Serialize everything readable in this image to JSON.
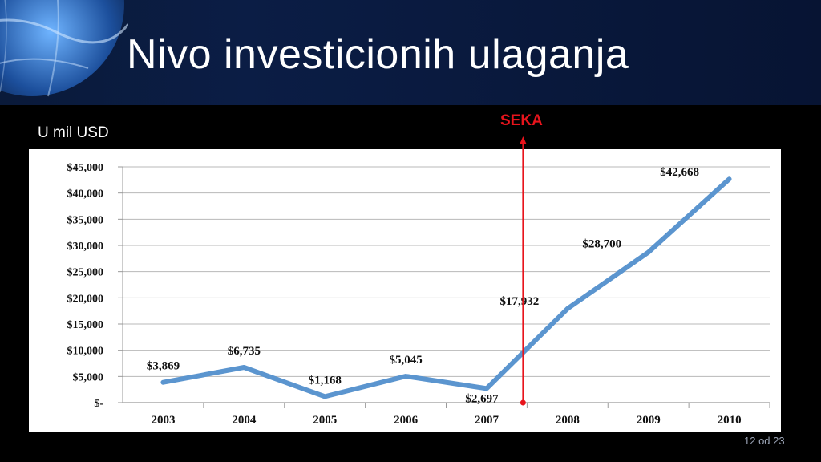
{
  "slide": {
    "title": "Nivo investicionih ulaganja",
    "units_label": "U mil USD",
    "marker_label": "SEKA",
    "page_number": "12 od 23"
  },
  "colors": {
    "line": "#5b95cf",
    "marker": "#e8141c",
    "banner": "#0b1d45"
  },
  "chart_data": {
    "type": "line",
    "categories": [
      "2003",
      "2004",
      "2005",
      "2006",
      "2007",
      "2008",
      "2009",
      "2010"
    ],
    "series": [
      {
        "values": [
          3869,
          6735,
          1168,
          5045,
          2697,
          17932,
          28700,
          42668
        ]
      }
    ],
    "data_labels": [
      "$3,869",
      "$6,735",
      "$1,168",
      "$5,045",
      "$2,697",
      "$17,932",
      "$28,700",
      "$42,668"
    ],
    "y_ticks": [
      0,
      5000,
      10000,
      15000,
      20000,
      25000,
      30000,
      35000,
      40000,
      45000
    ],
    "y_tick_labels": [
      "$-",
      "$5,000",
      "$10,000",
      "$15,000",
      "$20,000",
      "$25,000",
      "$30,000",
      "$35,000",
      "$40,000",
      "$45,000"
    ],
    "ylim": [
      0,
      45000
    ],
    "grid": true,
    "legend": false,
    "annotation": {
      "label": "SEKA",
      "between": [
        "2007",
        "2008"
      ]
    }
  }
}
